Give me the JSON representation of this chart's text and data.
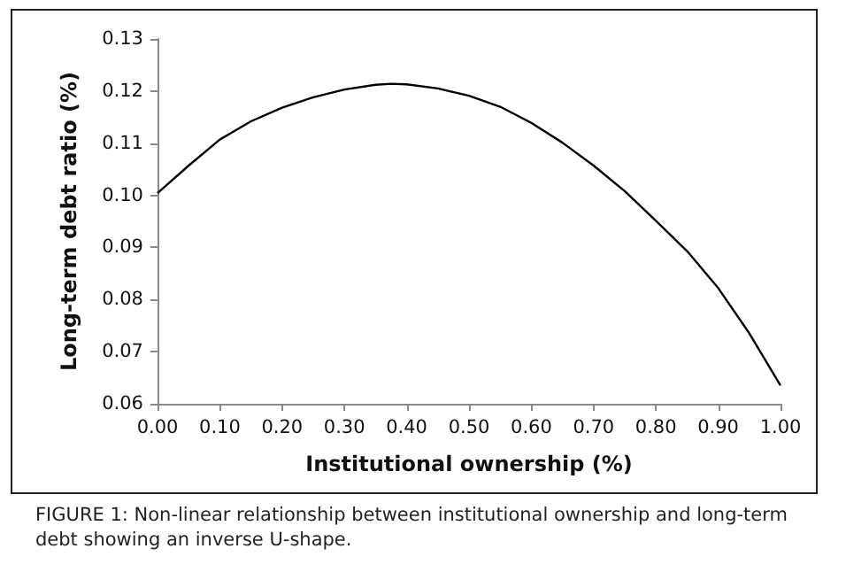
{
  "chart_data": {
    "type": "line",
    "xlabel": "Institutional ownership (%)",
    "ylabel": "Long-term debt ratio (%)",
    "annotations": [
      "FIGURE 1: Non-linear relationship between institutional ownership and long-term debt showing an inverse U-shape."
    ],
    "series": [
      {
        "color": "#000000",
        "x": [
          0,
          0.05,
          0.1,
          0.15,
          0.2,
          0.25,
          0.3,
          0.35,
          0.375,
          0.4,
          0.45,
          0.5,
          0.55,
          0.6,
          0.65,
          0.7,
          0.75,
          0.8,
          0.85,
          0.9,
          0.95,
          1.0
        ],
        "values": [
          0.1004,
          0.1057,
          0.1107,
          0.1142,
          0.1168,
          0.1188,
          0.1203,
          0.1212,
          0.1214,
          0.1213,
          0.1205,
          0.1191,
          0.117,
          0.1139,
          0.1101,
          0.1057,
          0.1008,
          0.0951,
          0.0893,
          0.0822,
          0.0735,
          0.0635
        ]
      }
    ],
    "xlim": [
      0,
      1
    ],
    "xticks": [
      {
        "value": 0,
        "label": "0.00"
      },
      {
        "value": 0.1,
        "label": "0.10"
      },
      {
        "value": 0.2,
        "label": "0.20"
      },
      {
        "value": 0.3,
        "label": "0.30"
      },
      {
        "value": 0.4,
        "label": "0.40"
      },
      {
        "value": 0.5,
        "label": "0.50"
      },
      {
        "value": 0.6,
        "label": "0.60"
      },
      {
        "value": 0.7,
        "label": "0.70"
      },
      {
        "value": 0.8,
        "label": "0.80"
      },
      {
        "value": 0.9,
        "label": "0.90"
      },
      {
        "value": 1,
        "label": "1.00"
      }
    ],
    "ylim": [
      0.06,
      0.13
    ],
    "yticks": [
      {
        "value": 0.06,
        "label": "0.06"
      },
      {
        "value": 0.07,
        "label": "0.07"
      },
      {
        "value": 0.08,
        "label": "0.08"
      },
      {
        "value": 0.09,
        "label": "0.09"
      },
      {
        "value": 0.1,
        "label": "0.10"
      },
      {
        "value": 0.11,
        "label": "0.11"
      },
      {
        "value": 0.12,
        "label": "0.12"
      },
      {
        "value": 0.13,
        "label": "0.13"
      }
    ],
    "grid": false,
    "marker": "none",
    "line_style": "solid"
  }
}
